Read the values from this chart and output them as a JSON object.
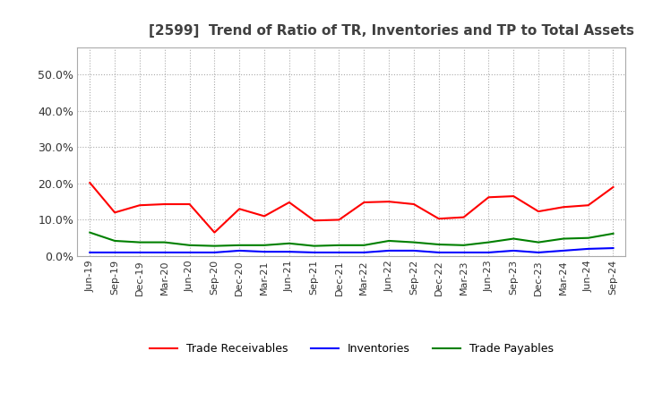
{
  "title": "[2599]  Trend of Ratio of TR, Inventories and TP to Total Assets",
  "x_labels": [
    "Jun-19",
    "Sep-19",
    "Dec-19",
    "Mar-20",
    "Jun-20",
    "Sep-20",
    "Dec-20",
    "Mar-21",
    "Jun-21",
    "Sep-21",
    "Dec-21",
    "Mar-22",
    "Jun-22",
    "Sep-22",
    "Dec-22",
    "Mar-23",
    "Jun-23",
    "Sep-23",
    "Dec-23",
    "Mar-24",
    "Jun-24",
    "Sep-24"
  ],
  "trade_receivables": [
    0.202,
    0.12,
    0.14,
    0.143,
    0.143,
    0.065,
    0.13,
    0.11,
    0.148,
    0.098,
    0.1,
    0.148,
    0.15,
    0.143,
    0.103,
    0.107,
    0.162,
    0.165,
    0.123,
    0.135,
    0.14,
    0.19
  ],
  "inventories": [
    0.01,
    0.01,
    0.01,
    0.01,
    0.01,
    0.01,
    0.015,
    0.012,
    0.012,
    0.01,
    0.01,
    0.01,
    0.015,
    0.015,
    0.01,
    0.01,
    0.01,
    0.015,
    0.01,
    0.015,
    0.02,
    0.022
  ],
  "trade_payables": [
    0.065,
    0.042,
    0.038,
    0.038,
    0.03,
    0.028,
    0.03,
    0.03,
    0.035,
    0.028,
    0.03,
    0.03,
    0.042,
    0.038,
    0.032,
    0.03,
    0.038,
    0.048,
    0.038,
    0.048,
    0.05,
    0.062
  ],
  "ylim": [
    0.0,
    0.575
  ],
  "yticks": [
    0.0,
    0.1,
    0.2,
    0.3,
    0.4,
    0.5
  ],
  "ytick_labels": [
    "0.0%",
    "10.0%",
    "20.0%",
    "30.0%",
    "40.0%",
    "50.0%"
  ],
  "tr_color": "#FF0000",
  "inv_color": "#0000FF",
  "tp_color": "#008000",
  "bg_color": "#FFFFFF",
  "grid_color": "#AAAAAA",
  "title_color": "#404040",
  "legend_labels": [
    "Trade Receivables",
    "Inventories",
    "Trade Payables"
  ]
}
